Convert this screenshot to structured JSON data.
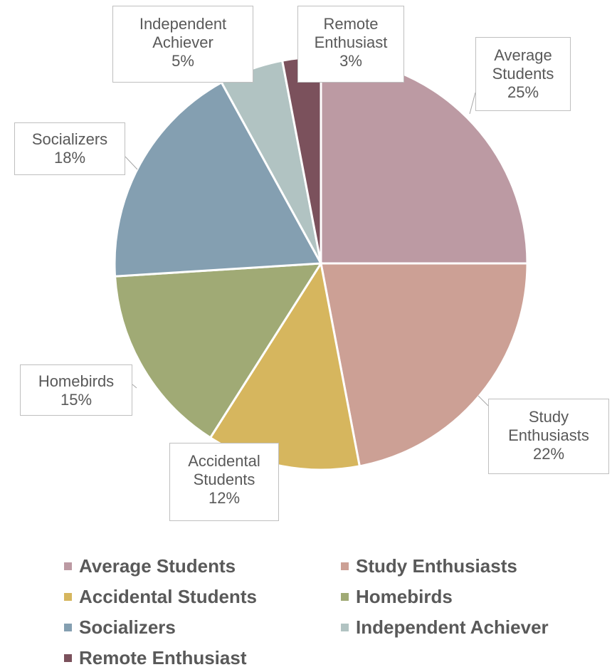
{
  "chart_data": {
    "type": "pie",
    "categories": [
      "Average Students",
      "Study Enthusiasts",
      "Accidental Students",
      "Homebirds",
      "Socializers",
      "Independent Achiever",
      "Remote Enthusiast"
    ],
    "values": [
      25,
      22,
      12,
      15,
      18,
      5,
      3
    ],
    "value_labels": [
      "25%",
      "22%",
      "12%",
      "15%",
      "18%",
      "5%",
      "3%"
    ],
    "colors": [
      "#bc9aa3",
      "#cca095",
      "#d6b65e",
      "#a0aa75",
      "#849fb1",
      "#b1c3c2",
      "#7b515c"
    ],
    "legend": "bottom"
  }
}
